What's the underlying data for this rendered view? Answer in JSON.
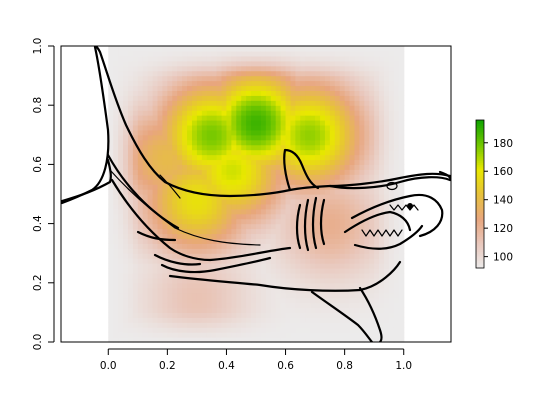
{
  "chart_data": {
    "type": "heatmap",
    "title": "",
    "xlabel": "",
    "ylabel": "",
    "xlim": [
      -0.16,
      1.16
    ],
    "ylim": [
      0.0,
      1.0
    ],
    "x_ticks": [
      0.0,
      0.2,
      0.4,
      0.6,
      0.8,
      1.0
    ],
    "x_tick_labels": [
      "0.0",
      "0.2",
      "0.4",
      "0.6",
      "0.8",
      "1.0"
    ],
    "y_ticks": [
      0.0,
      0.2,
      0.4,
      0.6,
      0.8,
      1.0
    ],
    "y_tick_labels": [
      "0.0",
      "0.2",
      "0.4",
      "0.6",
      "0.8",
      "1.0"
    ],
    "grid": false,
    "raster_extent": {
      "x": [
        0.0,
        1.0
      ],
      "y": [
        0.0,
        1.0
      ]
    },
    "background_value": 92,
    "peaks": [
      {
        "x": 0.5,
        "y": 0.74,
        "value": 188
      },
      {
        "x": 0.35,
        "y": 0.7,
        "value": 178
      },
      {
        "x": 0.68,
        "y": 0.7,
        "value": 174
      },
      {
        "x": 0.3,
        "y": 0.48,
        "value": 158
      },
      {
        "x": 0.42,
        "y": 0.58,
        "value": 165
      },
      {
        "x": 0.2,
        "y": 0.62,
        "value": 140
      },
      {
        "x": 0.75,
        "y": 0.4,
        "value": 122
      },
      {
        "x": 0.3,
        "y": 0.15,
        "value": 112
      }
    ],
    "legend": {
      "placement": "right",
      "min": 92,
      "max": 196,
      "ticks": [
        100,
        120,
        140,
        160,
        180
      ],
      "tick_labels": [
        "100",
        "120",
        "140",
        "160",
        "180"
      ],
      "colors": [
        "#ecebeb",
        "#e9c8bd",
        "#e8a67e",
        "#e7c13b",
        "#e8e800",
        "#72c700",
        "#0fa300"
      ]
    },
    "overlay": "shark outline"
  }
}
